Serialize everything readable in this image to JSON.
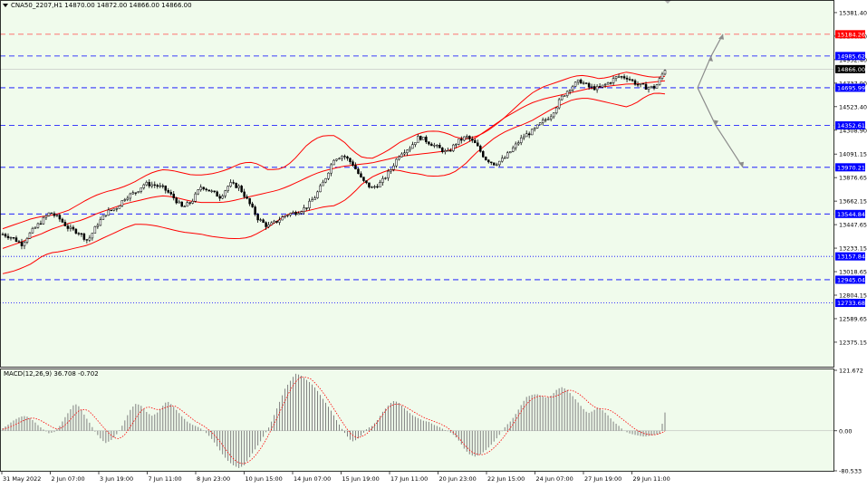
{
  "header": {
    "symbol_line": "CNA50_2207,H1  14870.00 14872.00 14866.00 14866.00",
    "dropdown_icon": "triangle-down-icon"
  },
  "colors": {
    "background": "#f0fbec",
    "candle": "#000000",
    "bollinger": "#ff0000",
    "dashed_blue": "#0000ff",
    "dashed_red": "#ff6060",
    "level_label_bg": "#0000ff",
    "red_label_bg": "#ff0000",
    "price_label_bg": "#000000",
    "projection_arrow": "#8c8c8c",
    "macd_hist": "#808080",
    "macd_signal": "#ff0000"
  },
  "chart_data": [
    {
      "type": "candlestick",
      "title": "CNA50_2207,H1",
      "ohlc_current": {
        "open": 14870.0,
        "high": 14872.0,
        "low": 14866.0,
        "close": 14866.0
      },
      "ylim": [
        12160,
        15480
      ],
      "price_ticks": [
        "15381.40",
        "15166.90",
        "14952.40",
        "14737.90",
        "14523.40",
        "14308.90",
        "14091.15",
        "13876.65",
        "13662.15",
        "13447.65",
        "13233.15",
        "13018.65",
        "12804.15",
        "12589.65",
        "12375.15"
      ],
      "price_tick_values": [
        15381.4,
        15166.9,
        14952.4,
        14737.9,
        14523.4,
        14308.9,
        14091.15,
        13876.65,
        13662.15,
        13447.65,
        13233.15,
        13018.65,
        12804.15,
        12589.65,
        12375.15
      ],
      "current_price_label": "14866.00",
      "levels": [
        {
          "label": "15184.26",
          "value": 15184.26,
          "style": "dashed",
          "color": "red"
        },
        {
          "label": "14985.62",
          "value": 14985.62,
          "style": "dashed",
          "color": "blue"
        },
        {
          "label": "14695.99",
          "value": 14695.99,
          "style": "dashed",
          "color": "blue"
        },
        {
          "label": "14352.61",
          "value": 14352.61,
          "style": "dashed",
          "color": "blue"
        },
        {
          "label": "13970.21",
          "value": 13970.21,
          "style": "dashed",
          "color": "blue"
        },
        {
          "label": "13544.84",
          "value": 13544.84,
          "style": "dashed",
          "color": "blue"
        },
        {
          "label": "13157.84",
          "value": 13157.84,
          "style": "dotted",
          "color": "blue"
        },
        {
          "label": "12945.04",
          "value": 12945.04,
          "style": "dashed",
          "color": "blue"
        },
        {
          "label": "12733.68",
          "value": 12733.68,
          "style": "dotted",
          "color": "blue"
        }
      ],
      "x_labels": [
        "31 May 2022",
        "2 Jun 07:00",
        "3 Jun 19:00",
        "7 Jun 11:00",
        "8 Jun 23:00",
        "10 Jun 15:00",
        "14 Jun 07:00",
        "15 Jun 19:00",
        "17 Jun 11:00",
        "20 Jun 23:00",
        "22 Jun 15:00",
        "24 Jun 07:00",
        "27 Jun 19:00",
        "29 Jun 11:00"
      ],
      "close_path": [
        13360,
        13330,
        13270,
        13380,
        13470,
        13560,
        13500,
        13410,
        13380,
        13300,
        13450,
        13560,
        13600,
        13700,
        13740,
        13820,
        13810,
        13780,
        13700,
        13600,
        13660,
        13800,
        13750,
        13700,
        13820,
        13790,
        13650,
        13500,
        13430,
        13480,
        13540,
        13560,
        13600,
        13700,
        13850,
        14050,
        14080,
        14000,
        13850,
        13780,
        13830,
        13950,
        14100,
        14150,
        14250,
        14200,
        14150,
        14100,
        14200,
        14250,
        14180,
        14050,
        14000,
        14050,
        14150,
        14250,
        14300,
        14380,
        14450,
        14600,
        14700,
        14760,
        14700,
        14690,
        14740,
        14800,
        14790,
        14730,
        14700,
        14700,
        14866
      ],
      "bollinger_upper": [
        13410,
        13440,
        13470,
        13500,
        13520,
        13530,
        13550,
        13580,
        13630,
        13680,
        13720,
        13750,
        13770,
        13800,
        13840,
        13890,
        13930,
        13950,
        13940,
        13920,
        13900,
        13900,
        13910,
        13930,
        13960,
        14000,
        14020,
        14000,
        13950,
        13950,
        13980,
        14060,
        14160,
        14230,
        14260,
        14260,
        14210,
        14120,
        14060,
        14050,
        14090,
        14140,
        14200,
        14240,
        14280,
        14300,
        14300,
        14280,
        14240,
        14230,
        14250,
        14290,
        14350,
        14420,
        14500,
        14580,
        14650,
        14700,
        14730,
        14760,
        14790,
        14810,
        14800,
        14780,
        14790,
        14820,
        14840,
        14820,
        14800,
        14790,
        14800
      ],
      "bollinger_middle": [
        13230,
        13260,
        13290,
        13330,
        13360,
        13400,
        13430,
        13460,
        13480,
        13510,
        13550,
        13580,
        13610,
        13640,
        13660,
        13680,
        13700,
        13710,
        13700,
        13680,
        13660,
        13650,
        13650,
        13650,
        13660,
        13680,
        13700,
        13720,
        13740,
        13760,
        13790,
        13830,
        13870,
        13910,
        13940,
        13960,
        13980,
        13990,
        14000,
        14010,
        14030,
        14050,
        14070,
        14080,
        14090,
        14100,
        14110,
        14120,
        14150,
        14190,
        14240,
        14300,
        14360,
        14420,
        14470,
        14520,
        14560,
        14590,
        14610,
        14630,
        14650,
        14670,
        14690,
        14700,
        14710,
        14720,
        14730,
        14730,
        14740,
        14750,
        14760
      ],
      "bollinger_lower": [
        13000,
        13020,
        13050,
        13090,
        13150,
        13190,
        13200,
        13220,
        13240,
        13260,
        13300,
        13340,
        13380,
        13420,
        13450,
        13450,
        13440,
        13420,
        13400,
        13380,
        13370,
        13360,
        13340,
        13330,
        13320,
        13320,
        13330,
        13370,
        13420,
        13480,
        13540,
        13560,
        13570,
        13590,
        13610,
        13620,
        13660,
        13730,
        13820,
        13880,
        13920,
        13950,
        13940,
        13920,
        13910,
        13890,
        13890,
        13900,
        13940,
        14010,
        14100,
        14170,
        14240,
        14290,
        14330,
        14360,
        14400,
        14450,
        14500,
        14540,
        14580,
        14600,
        14600,
        14580,
        14560,
        14540,
        14520,
        14560,
        14620,
        14650,
        14640
      ],
      "projection": {
        "up_target": 15184.26,
        "down_target": 13970.21,
        "start": 14695.99
      }
    },
    {
      "type": "bar",
      "title": "MACD(12,26,9) 36.708 -0.702",
      "indicator": "MACD(12,26,9)",
      "main_value": "36.708",
      "signal_value": "-0.702",
      "ylim": [
        -80.533,
        121.672
      ],
      "ticks": [
        "121.672",
        "0.00",
        "-80.533"
      ],
      "tick_values": [
        121.672,
        0.0,
        -80.533
      ],
      "histogram": [
        5,
        12,
        20,
        26,
        30,
        28,
        20,
        10,
        2,
        -5,
        -3,
        8,
        25,
        40,
        55,
        48,
        30,
        15,
        -2,
        -15,
        -25,
        -20,
        -10,
        5,
        25,
        45,
        55,
        50,
        38,
        30,
        35,
        48,
        60,
        52,
        40,
        28,
        18,
        12,
        8,
        2,
        -8,
        -20,
        -35,
        -50,
        -62,
        -70,
        -75,
        -70,
        -55,
        -40,
        -25,
        -8,
        10,
        35,
        60,
        85,
        100,
        115,
        112,
        104,
        96,
        85,
        70,
        55,
        40,
        22,
        5,
        -10,
        -22,
        -18,
        -8,
        5,
        10,
        22,
        38,
        50,
        60,
        58,
        48,
        38,
        30,
        25,
        20,
        18,
        12,
        8,
        2,
        -2,
        -10,
        -22,
        -38,
        -48,
        -52,
        -48,
        -40,
        -30,
        -18,
        -5,
        10,
        20,
        35,
        52,
        68,
        72,
        74,
        70,
        66,
        72,
        84,
        88,
        82,
        70,
        58,
        45,
        35,
        40,
        48,
        40,
        30,
        18,
        10,
        0,
        -5,
        -8,
        -10,
        -12,
        -10,
        -8,
        -6,
        36.708
      ],
      "signal": [
        3,
        6,
        10,
        15,
        20,
        24,
        26,
        23,
        18,
        12,
        6,
        3,
        8,
        18,
        30,
        40,
        44,
        40,
        30,
        18,
        6,
        -5,
        -14,
        -16,
        -10,
        4,
        20,
        36,
        46,
        48,
        44,
        42,
        46,
        50,
        50,
        44,
        36,
        28,
        20,
        14,
        8,
        0,
        -10,
        -22,
        -36,
        -50,
        -60,
        -66,
        -66,
        -60,
        -50,
        -36,
        -20,
        0,
        20,
        42,
        64,
        84,
        100,
        108,
        108,
        104,
        94,
        82,
        68,
        52,
        36,
        20,
        5,
        -8,
        -14,
        -12,
        -6,
        4,
        16,
        30,
        44,
        52,
        54,
        52,
        46,
        40,
        34,
        28,
        24,
        20,
        16,
        12,
        6,
        -2,
        -12,
        -24,
        -36,
        -44,
        -48,
        -48,
        -44,
        -36,
        -26,
        -14,
        0,
        14,
        30,
        46,
        58,
        66,
        70,
        70,
        68,
        68,
        72,
        78,
        82,
        80,
        74,
        66,
        56,
        48,
        44,
        44,
        42,
        36,
        28,
        20,
        12,
        4,
        -2,
        -6,
        -8,
        -8,
        -6,
        -0.702
      ]
    }
  ]
}
